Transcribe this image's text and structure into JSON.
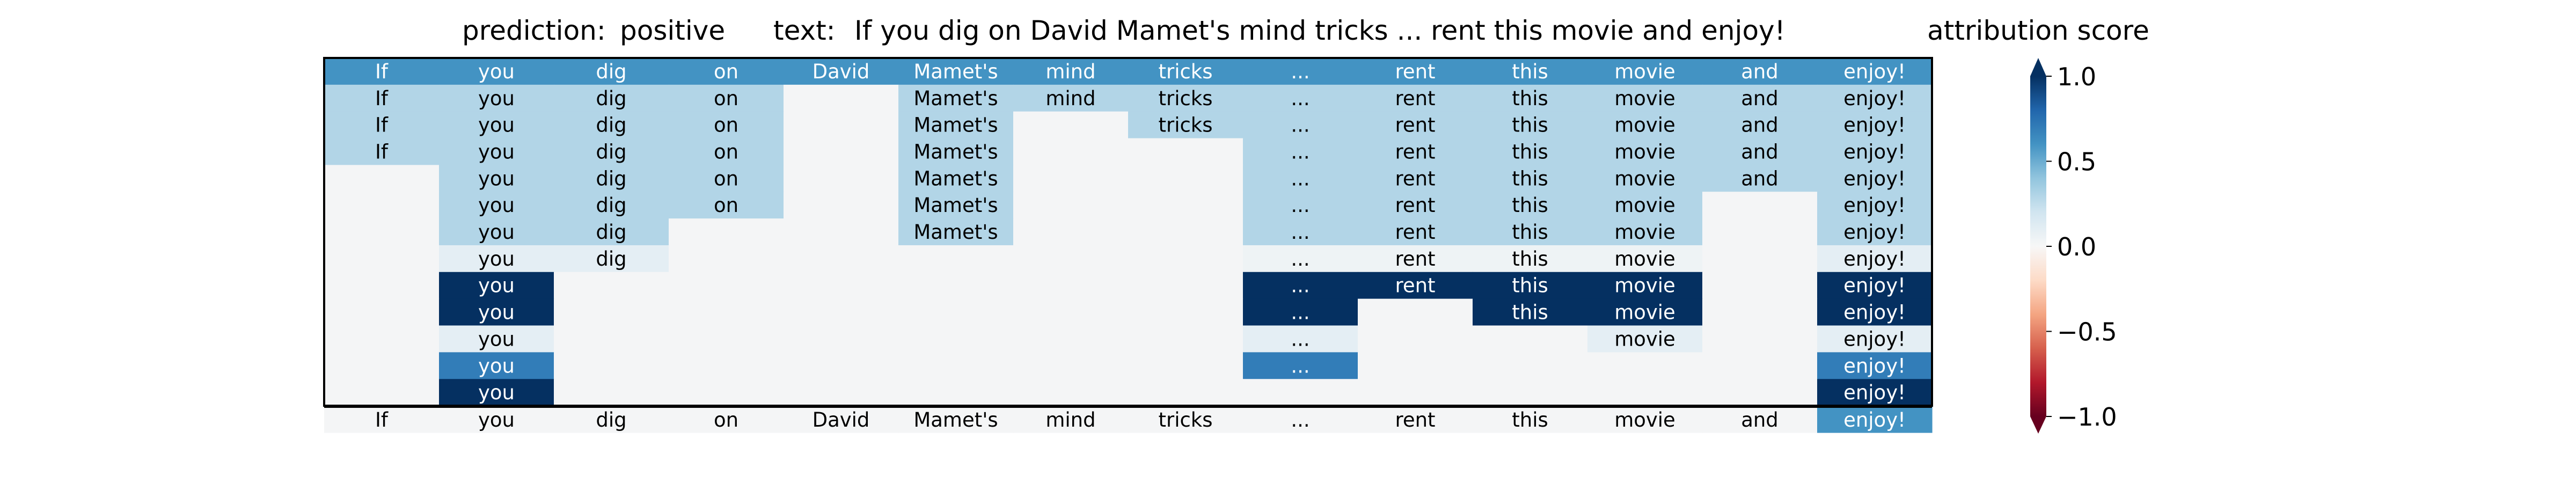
{
  "header": {
    "prediction_label": "prediction:",
    "prediction_value": "positive",
    "text_label": "text:",
    "text_value": "If you dig on David Mamet's mind tricks ... rent this movie and enjoy!",
    "colorbar_title": "attribution score"
  },
  "colorbar": {
    "ticks": [
      "1.0",
      "0.5",
      "0.0",
      "−0.5",
      "−1.0"
    ],
    "tick_values": [
      1.0,
      0.5,
      0.0,
      -0.5,
      -1.0
    ],
    "range": [
      -1.0,
      1.0
    ],
    "colormap": "RdBu",
    "extend": "both"
  },
  "chart_data": {
    "type": "heatmap",
    "tokens": [
      "If",
      "you",
      "dig",
      "on",
      "David",
      "Mamet's",
      "mind",
      "tricks",
      "...",
      "rent",
      "this",
      "movie",
      "and",
      "enjoy!"
    ],
    "rows": [
      [
        0.6,
        0.6,
        0.6,
        0.6,
        0.6,
        0.6,
        0.6,
        0.6,
        0.6,
        0.6,
        0.6,
        0.6,
        0.6,
        0.6
      ],
      [
        0.3,
        0.3,
        0.3,
        0.3,
        null,
        0.3,
        0.3,
        0.3,
        0.3,
        0.3,
        0.3,
        0.3,
        0.3,
        0.3
      ],
      [
        0.3,
        0.3,
        0.3,
        0.3,
        null,
        0.3,
        null,
        0.3,
        0.3,
        0.3,
        0.3,
        0.3,
        0.3,
        0.3
      ],
      [
        0.3,
        0.3,
        0.3,
        0.3,
        null,
        0.3,
        null,
        null,
        0.3,
        0.3,
        0.3,
        0.3,
        0.3,
        0.3
      ],
      [
        null,
        0.3,
        0.3,
        0.3,
        null,
        0.3,
        null,
        null,
        0.3,
        0.3,
        0.3,
        0.3,
        0.3,
        0.3
      ],
      [
        null,
        0.3,
        0.3,
        0.3,
        null,
        0.3,
        null,
        null,
        0.3,
        0.3,
        0.3,
        0.3,
        null,
        0.3
      ],
      [
        null,
        0.3,
        0.3,
        null,
        null,
        0.3,
        null,
        null,
        0.3,
        0.3,
        0.3,
        0.3,
        null,
        0.3
      ],
      [
        null,
        0.1,
        0.1,
        null,
        null,
        null,
        null,
        null,
        0.05,
        0.05,
        0.05,
        0.05,
        null,
        0.1
      ],
      [
        null,
        1.0,
        null,
        null,
        null,
        null,
        null,
        null,
        1.0,
        1.0,
        1.0,
        1.0,
        null,
        1.0
      ],
      [
        null,
        1.0,
        null,
        null,
        null,
        null,
        null,
        null,
        1.0,
        null,
        1.0,
        1.0,
        null,
        1.0
      ],
      [
        null,
        0.1,
        null,
        null,
        null,
        null,
        null,
        null,
        0.1,
        null,
        null,
        0.1,
        null,
        0.1
      ],
      [
        null,
        0.7,
        null,
        null,
        null,
        null,
        null,
        null,
        0.7,
        null,
        null,
        null,
        null,
        0.7
      ],
      [
        null,
        1.0,
        null,
        null,
        null,
        null,
        null,
        null,
        null,
        null,
        null,
        null,
        null,
        1.0
      ]
    ],
    "final_row": [
      null,
      null,
      null,
      null,
      null,
      null,
      null,
      null,
      null,
      null,
      null,
      null,
      null,
      0.6
    ],
    "clim": [
      -1.0,
      1.0
    ],
    "colormap": "RdBu",
    "empty_cell_color": "#f4f5f6"
  }
}
